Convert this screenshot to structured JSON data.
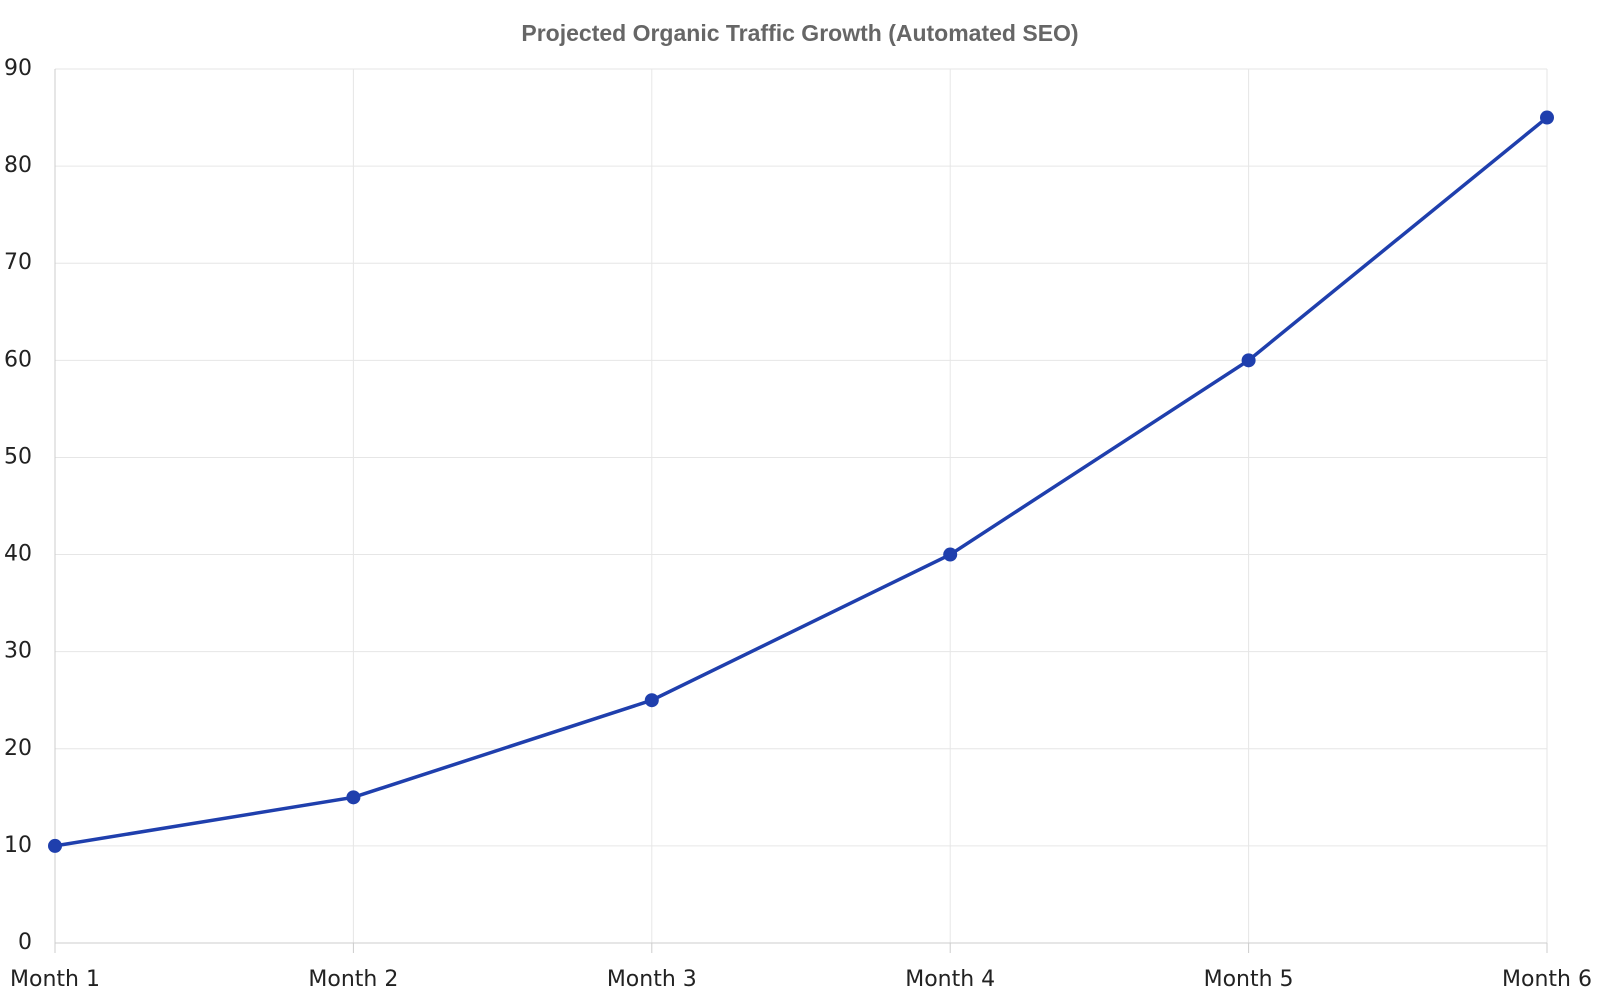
{
  "chart_data": {
    "type": "line",
    "title": "Projected Organic Traffic Growth (Automated SEO)",
    "categories": [
      "Month 1",
      "Month 2",
      "Month 3",
      "Month 4",
      "Month 5",
      "Month 6"
    ],
    "series": [
      {
        "color": "#1f3fad",
        "values": [
          10,
          15,
          25,
          40,
          60,
          85
        ]
      }
    ],
    "ylim": [
      0,
      90
    ],
    "yticks": [
      0,
      10,
      20,
      30,
      40,
      50,
      60,
      70,
      80,
      90
    ],
    "grid": true
  }
}
